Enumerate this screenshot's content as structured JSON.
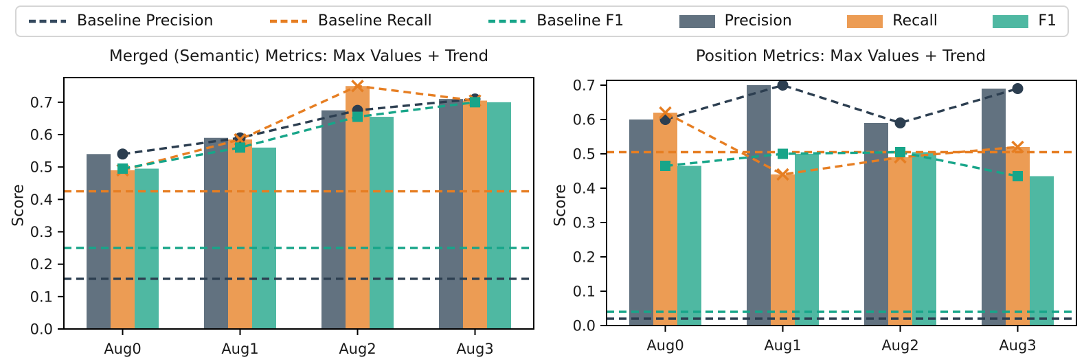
{
  "page": {
    "background": "#ffffff"
  },
  "legend": {
    "items": [
      {
        "label": "Baseline Precision",
        "swatch": "dashed-line",
        "color": "#34495E"
      },
      {
        "label": "Baseline Recall",
        "swatch": "dashed-line",
        "color": "#E67E22"
      },
      {
        "label": "Baseline F1",
        "swatch": "dashed-line",
        "color": "#17A589"
      },
      {
        "label": "Precision",
        "swatch": "bar",
        "color": "#627280"
      },
      {
        "label": "Recall",
        "swatch": "bar",
        "color": "#EC9C54"
      },
      {
        "label": "F1",
        "swatch": "bar",
        "color": "#4FB8A2"
      }
    ]
  },
  "chart_data": [
    {
      "type": "bar",
      "title": "Merged (Semantic) Metrics: Max Values + Trend",
      "ylabel": "Score",
      "xlabel": "",
      "categories": [
        "Aug0",
        "Aug1",
        "Aug2",
        "Aug3"
      ],
      "ylim": [
        0,
        0.776
      ],
      "yticks": [
        0.0,
        0.1,
        0.2,
        0.3,
        0.4,
        0.5,
        0.6,
        0.7
      ],
      "grid": false,
      "legend_position": "top-outside",
      "series": [
        {
          "name": "Precision",
          "marker": "circle",
          "bar_color": "#627280",
          "line_color": "#2C3E50",
          "values": [
            0.54,
            0.59,
            0.675,
            0.71
          ],
          "baseline": 0.155
        },
        {
          "name": "Recall",
          "marker": "x",
          "bar_color": "#EC9C54",
          "line_color": "#E67E22",
          "values": [
            0.49,
            0.585,
            0.75,
            0.705
          ],
          "baseline": 0.425
        },
        {
          "name": "F1",
          "marker": "square",
          "bar_color": "#4FB8A2",
          "line_color": "#17A589",
          "values": [
            0.495,
            0.56,
            0.655,
            0.7
          ],
          "baseline": 0.25
        }
      ]
    },
    {
      "type": "bar",
      "title": "Position Metrics: Max Values + Trend",
      "ylabel": "Score",
      "xlabel": "",
      "categories": [
        "Aug0",
        "Aug1",
        "Aug2",
        "Aug3"
      ],
      "ylim": [
        0,
        0.714
      ],
      "yticks": [
        0.0,
        0.1,
        0.2,
        0.3,
        0.4,
        0.5,
        0.6,
        0.7
      ],
      "grid": false,
      "legend_position": "top-outside",
      "series": [
        {
          "name": "Precision",
          "marker": "circle",
          "bar_color": "#627280",
          "line_color": "#2C3E50",
          "values": [
            0.6,
            0.7,
            0.59,
            0.69
          ],
          "baseline": 0.02
        },
        {
          "name": "Recall",
          "marker": "x",
          "bar_color": "#EC9C54",
          "line_color": "#E67E22",
          "values": [
            0.62,
            0.44,
            0.49,
            0.52
          ],
          "baseline": 0.505
        },
        {
          "name": "F1",
          "marker": "square",
          "bar_color": "#4FB8A2",
          "line_color": "#17A589",
          "values": [
            0.465,
            0.5,
            0.505,
            0.435
          ],
          "baseline": 0.04
        }
      ]
    }
  ]
}
